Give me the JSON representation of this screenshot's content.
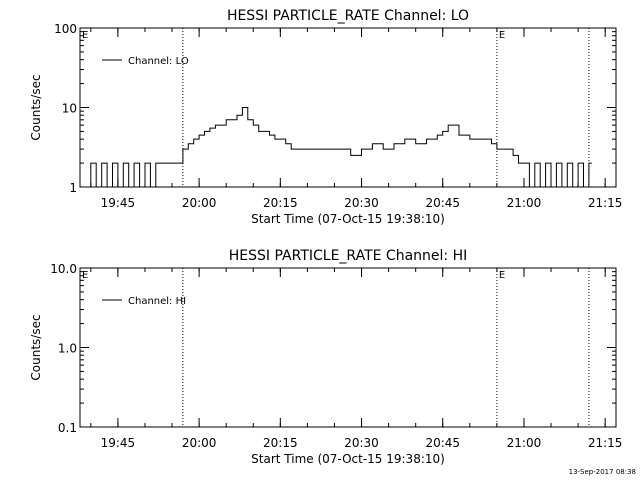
{
  "footer": {
    "timestamp": "13-Sep-2017 08:38"
  },
  "chart_data": [
    {
      "type": "line",
      "title": "HESSI PARTICLE_RATE Channel: LO",
      "xlabel": "Start Time (07-Oct-15 19:38:10)",
      "ylabel": "Counts/sec",
      "yscale": "log",
      "ylim": [
        1,
        100
      ],
      "yticks": [
        1,
        10,
        100
      ],
      "ytick_labels": [
        "1",
        "10",
        "100"
      ],
      "xlim": [
        "19:38",
        "21:17"
      ],
      "xticks": [
        "19:45",
        "20:00",
        "20:15",
        "20:30",
        "20:45",
        "21:00",
        "21:15"
      ],
      "legend": {
        "label": "Channel: LO",
        "placement": "top-left"
      },
      "event_markers": [
        {
          "time": "19:57",
          "label": ""
        },
        {
          "time": "20:55",
          "label": "E"
        },
        {
          "time": "21:12",
          "label": ""
        }
      ],
      "start_marker_label": "E",
      "series": [
        {
          "name": "Channel: LO",
          "x": [
            "19:39",
            "19:40",
            "19:41",
            "19:42",
            "19:43",
            "19:44",
            "19:45",
            "19:46",
            "19:47",
            "19:48",
            "19:49",
            "19:50",
            "19:51",
            "19:52",
            "19:53",
            "19:54",
            "19:55",
            "19:56",
            "19:57",
            "19:58",
            "19:59",
            "20:00",
            "20:01",
            "20:02",
            "20:03",
            "20:04",
            "20:05",
            "20:06",
            "20:07",
            "20:08",
            "20:09",
            "20:10",
            "20:11",
            "20:12",
            "20:13",
            "20:14",
            "20:15",
            "20:16",
            "20:17",
            "20:18",
            "20:20",
            "20:22",
            "20:24",
            "20:26",
            "20:28",
            "20:30",
            "20:32",
            "20:34",
            "20:36",
            "20:38",
            "20:40",
            "20:42",
            "20:44",
            "20:45",
            "20:46",
            "20:48",
            "20:50",
            "20:52",
            "20:54",
            "20:55",
            "20:56",
            "20:57",
            "20:58",
            "20:59",
            "21:00",
            "21:01",
            "21:02",
            "21:03",
            "21:04",
            "21:05",
            "21:06",
            "21:07",
            "21:08",
            "21:09",
            "21:10",
            "21:11",
            "21:12"
          ],
          "y": [
            1,
            2,
            1,
            2,
            1,
            2,
            1,
            2,
            1,
            2,
            1,
            2,
            1,
            2,
            2,
            2,
            2,
            2,
            3,
            3.5,
            4,
            4.5,
            5,
            5.5,
            6,
            6,
            7,
            7,
            8,
            10,
            7,
            6,
            5,
            5,
            4.5,
            4,
            4,
            3.5,
            3,
            3,
            3,
            3,
            3,
            3,
            2.5,
            3,
            3.5,
            3,
            3.5,
            4,
            3.5,
            4,
            4.5,
            5,
            6,
            4.5,
            4,
            4,
            3.5,
            3,
            3,
            3,
            2.5,
            2,
            2,
            1,
            2,
            1,
            2,
            1,
            2,
            1,
            2,
            1,
            2,
            1,
            2
          ]
        }
      ]
    },
    {
      "type": "line",
      "title": "HESSI PARTICLE_RATE Channel: HI",
      "xlabel": "Start Time (07-Oct-15 19:38:10)",
      "ylabel": "Counts/sec",
      "yscale": "log",
      "ylim": [
        0.1,
        10
      ],
      "yticks": [
        0.1,
        1,
        10
      ],
      "ytick_labels": [
        "0.1",
        "1.0",
        "10.0"
      ],
      "xlim": [
        "19:38",
        "21:17"
      ],
      "xticks": [
        "19:45",
        "20:00",
        "20:15",
        "20:30",
        "20:45",
        "21:00",
        "21:15"
      ],
      "legend": {
        "label": "Channel: HI",
        "placement": "top-left"
      },
      "event_markers": [
        {
          "time": "19:57",
          "label": ""
        },
        {
          "time": "20:55",
          "label": "E"
        },
        {
          "time": "21:12",
          "label": ""
        }
      ],
      "start_marker_label": "E",
      "series": [
        {
          "name": "Channel: HI",
          "x": [],
          "y": []
        }
      ]
    }
  ]
}
